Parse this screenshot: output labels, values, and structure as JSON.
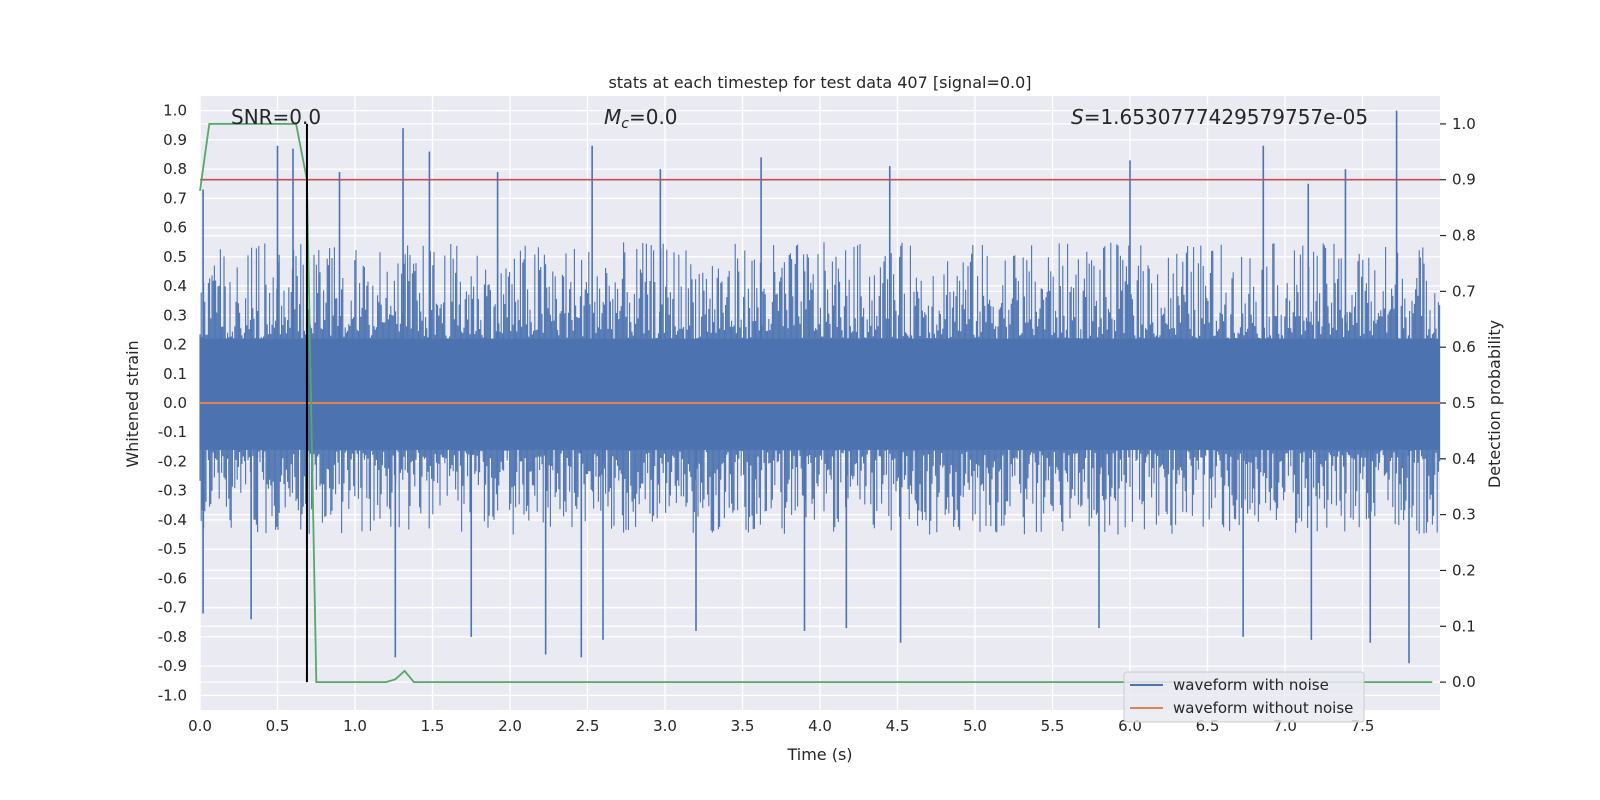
{
  "chart_data": {
    "type": "line",
    "title": "stats at each timestep for test data 407 [signal=0.0]",
    "xlabel": "Time (s)",
    "ylabel": "Whitened strain",
    "y2label": "Detection probability",
    "xlim": [
      0,
      8
    ],
    "ylim": [
      -1.05,
      1.05
    ],
    "y2lim": [
      -0.05,
      1.05
    ],
    "x_ticks": [
      "0.0",
      "0.5",
      "1.0",
      "1.5",
      "2.0",
      "2.5",
      "3.0",
      "3.5",
      "4.0",
      "4.5",
      "5.0",
      "5.5",
      "6.0",
      "6.5",
      "7.0",
      "7.5"
    ],
    "y_ticks": [
      "1.0",
      "0.9",
      "0.8",
      "0.7",
      "0.6",
      "0.5",
      "0.4",
      "0.3",
      "0.2",
      "0.1",
      "0.0",
      "-0.1",
      "-0.2",
      "-0.3",
      "-0.4",
      "-0.5",
      "-0.6",
      "-0.7",
      "-0.8",
      "-0.9",
      "-1.0"
    ],
    "y2_ticks": [
      "1.0",
      "0.9",
      "0.8",
      "0.7",
      "0.6",
      "0.5",
      "0.4",
      "0.3",
      "0.2",
      "0.1",
      "0.0"
    ],
    "grid": true,
    "legend_position": "lower-right",
    "annotations": {
      "snr": "SNR=0.0",
      "mc_symbol": "M",
      "mc_subscript": "c",
      "mc_value": "=0.0",
      "s_symbol": "S",
      "s_value": "=1.6530777429579757e-05"
    },
    "series": [
      {
        "name": "waveform with noise",
        "color": "#4c72b0",
        "axis": "left",
        "band_core": [
          -0.16,
          0.22
        ],
        "band_envelope": [
          -0.45,
          0.55
        ],
        "peaks_x": [
          0.02,
          0.5,
          0.6,
          0.9,
          1.31,
          1.48,
          1.92,
          2.53,
          2.97,
          3.62,
          4.45,
          6.0,
          6.86,
          7.15,
          7.39,
          7.72
        ],
        "peaks_y": [
          0.73,
          0.88,
          0.87,
          0.79,
          0.94,
          0.86,
          0.79,
          0.88,
          0.8,
          0.84,
          0.81,
          0.83,
          0.88,
          0.75,
          0.8,
          1.0
        ],
        "troughs_x": [
          0.02,
          0.33,
          1.26,
          1.75,
          2.23,
          2.46,
          2.6,
          3.2,
          3.9,
          4.17,
          4.52,
          5.8,
          6.73,
          7.17,
          7.55,
          7.8
        ],
        "troughs_y": [
          -0.72,
          -0.74,
          -0.87,
          -0.8,
          -0.86,
          -0.87,
          -0.81,
          -0.78,
          -0.78,
          -0.77,
          -0.82,
          -0.77,
          -0.8,
          -0.81,
          -0.82,
          -0.89
        ]
      },
      {
        "name": "waveform without noise",
        "color": "#dd8452",
        "axis": "left",
        "x": [
          0,
          8
        ],
        "y": [
          0,
          0
        ]
      },
      {
        "color": "#55a868",
        "axis": "right",
        "x": [
          0.0,
          0.06,
          0.1,
          0.2,
          0.5,
          0.62,
          0.69,
          0.75,
          1.0,
          1.2,
          1.26,
          1.32,
          1.38,
          1.5,
          7.95
        ],
        "y": [
          0.88,
          1.0,
          1.0,
          1.0,
          1.0,
          1.0,
          0.9,
          0.0,
          0.0,
          0.0,
          0.005,
          0.02,
          0.0,
          0.0,
          0.0
        ]
      }
    ],
    "threshold": {
      "color": "#c44e52",
      "axis": "right",
      "value": 0.9
    },
    "marker": {
      "color": "#000000",
      "x": 0.69,
      "y2_range": [
        0.0,
        1.0
      ]
    },
    "colors": {
      "plot_bg": "#eaeaf2",
      "grid": "#ffffff",
      "text": "#262626"
    }
  }
}
